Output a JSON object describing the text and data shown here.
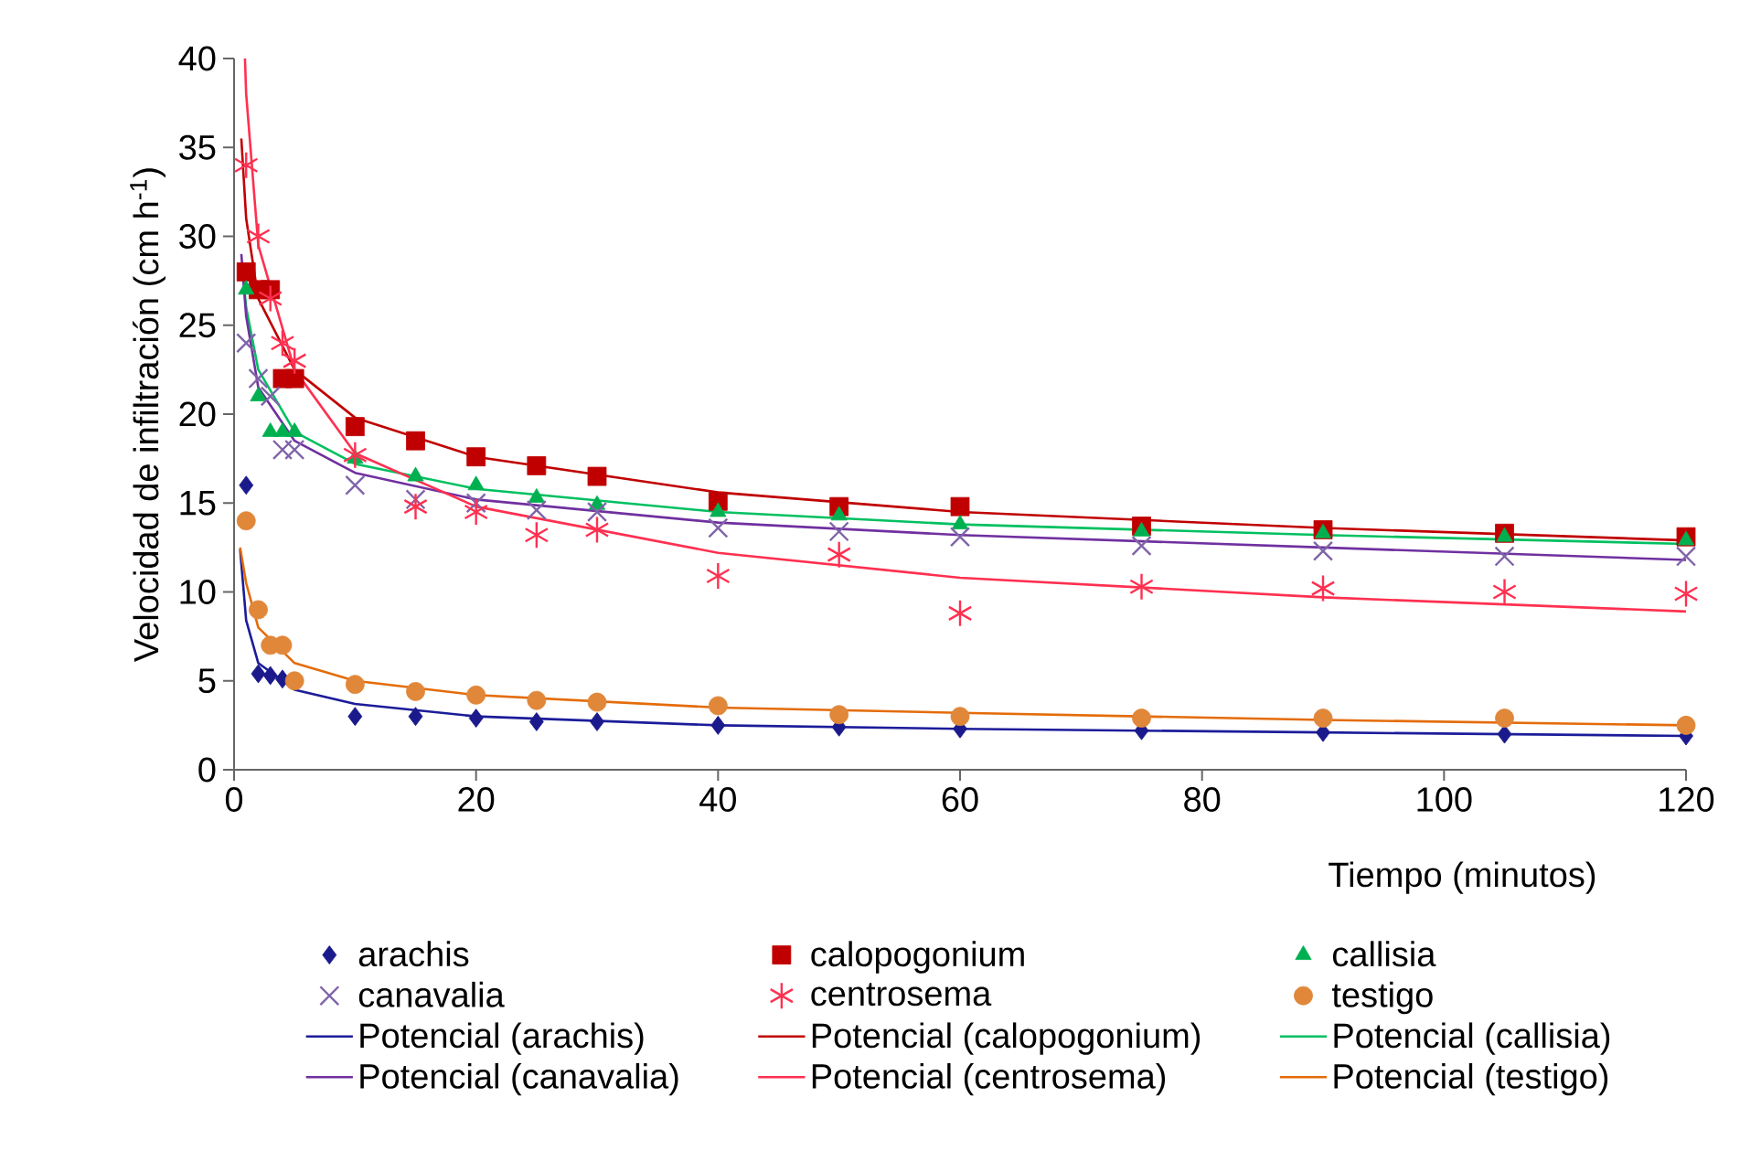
{
  "chart_data": {
    "type": "scatter",
    "xlabel": "Tiempo (minutos)",
    "ylabel": "Velocidad de infiltración (cm h$^{-1}$)",
    "xlim": [
      0,
      120
    ],
    "ylim": [
      0,
      40
    ],
    "xticks": [
      0,
      20,
      40,
      60,
      80,
      100,
      120
    ],
    "yticks": [
      0,
      5,
      10,
      15,
      20,
      25,
      30,
      35,
      40
    ],
    "legend": "bottom",
    "grid": false,
    "x": [
      1,
      2,
      3,
      4,
      5,
      10,
      15,
      20,
      25,
      30,
      40,
      50,
      60,
      75,
      90,
      105,
      120
    ],
    "series": [
      {
        "name": "arachis",
        "color": "#1a1a8c",
        "marker": "diamond",
        "values": [
          16,
          5.4,
          5.3,
          5.1,
          null,
          3.0,
          3.0,
          2.9,
          2.7,
          2.7,
          2.5,
          2.4,
          2.3,
          2.2,
          2.1,
          2.0,
          1.9
        ]
      },
      {
        "name": "calopogonium",
        "color": "#c00000",
        "marker": "square",
        "values": [
          28,
          27,
          27,
          22,
          22,
          19.3,
          18.5,
          17.6,
          17.1,
          16.5,
          15.1,
          14.8,
          14.8,
          13.7,
          13.5,
          13.3,
          13.1
        ]
      },
      {
        "name": "callisia",
        "color": "#00b050",
        "marker": "triangle",
        "values": [
          27,
          21,
          19,
          19,
          19,
          17.5,
          16.5,
          16,
          15.3,
          14.9,
          14.5,
          14.3,
          13.8,
          13.4,
          13.3,
          13.1,
          12.9
        ]
      },
      {
        "name": "canavalia",
        "color": "#7f64a8",
        "marker": "cross",
        "values": [
          24,
          22,
          21,
          18,
          18,
          16,
          15.2,
          15,
          14.6,
          14.5,
          13.6,
          13.4,
          13.1,
          12.6,
          12.3,
          12.0,
          12.0
        ]
      },
      {
        "name": "centrosema",
        "color": "#ff3050",
        "values": [
          34,
          30,
          26.5,
          24,
          23,
          17.7,
          14.8,
          14.5,
          13.2,
          13.5,
          10.9,
          12.1,
          8.8,
          10.3,
          10.2,
          10.0,
          9.9
        ]
      },
      {
        "name": "testigo",
        "color": "#e0873a",
        "marker": "circle",
        "values": [
          14,
          9,
          7,
          7,
          5,
          4.8,
          4.4,
          4.2,
          3.9,
          3.8,
          3.6,
          3.1,
          3.0,
          2.9,
          2.9,
          2.9,
          2.5
        ]
      },
      {
        "name": "Potencial (arachis)",
        "type": "line",
        "color": "#1c1c9a",
        "marker": "none",
        "line_style": "solid",
        "x": [
          0.5,
          1,
          2,
          5,
          10,
          20,
          40,
          60,
          90,
          120
        ],
        "values": [
          12.4,
          8.4,
          6,
          4.5,
          3.7,
          3.0,
          2.5,
          2.3,
          2.1,
          1.9
        ]
      },
      {
        "name": "Potencial (calopogonium)",
        "type": "line",
        "color": "#c00000",
        "marker": "none",
        "line_style": "solid",
        "x": [
          0.6,
          1,
          2,
          5,
          10,
          20,
          40,
          60,
          90,
          120
        ],
        "values": [
          35.5,
          31,
          26.5,
          22.5,
          19.8,
          17.6,
          15.6,
          14.5,
          13.6,
          12.9
        ]
      },
      {
        "name": "Potencial (callisia)",
        "type": "line",
        "color": "#00c060",
        "marker": "none",
        "line_style": "solid",
        "x": [
          0.7,
          1,
          2,
          5,
          10,
          20,
          40,
          60,
          90,
          120
        ],
        "values": [
          28,
          26,
          22.5,
          19,
          17.2,
          15.8,
          14.5,
          13.8,
          13.2,
          12.7
        ]
      },
      {
        "name": "Potencial (canavalia)",
        "type": "line",
        "color": "#7030a0",
        "marker": "none",
        "line_style": "solid",
        "x": [
          0.6,
          1,
          2,
          5,
          10,
          20,
          40,
          60,
          90,
          120
        ],
        "values": [
          29,
          25.5,
          21.5,
          18.5,
          16.7,
          15.2,
          13.9,
          13.2,
          12.5,
          11.8
        ]
      },
      {
        "name": "Potencial (centrosema)",
        "type": "line",
        "color": "#ff3050",
        "marker": "none",
        "line_style": "solid",
        "x": [
          0.9,
          1,
          2,
          5,
          10,
          20,
          40,
          60,
          90,
          120
        ],
        "values": [
          40,
          38,
          29.5,
          22.5,
          17.8,
          14.8,
          12.2,
          10.8,
          9.7,
          8.9
        ]
      },
      {
        "name": "Potencial (testigo)",
        "type": "line",
        "color": "#e46c0a",
        "marker": "none",
        "line_style": "solid",
        "x": [
          0.5,
          1,
          2,
          5,
          10,
          20,
          40,
          60,
          90,
          120
        ],
        "values": [
          12.5,
          10.5,
          8,
          6,
          5,
          4.2,
          3.5,
          3.2,
          2.8,
          2.5
        ]
      }
    ]
  }
}
